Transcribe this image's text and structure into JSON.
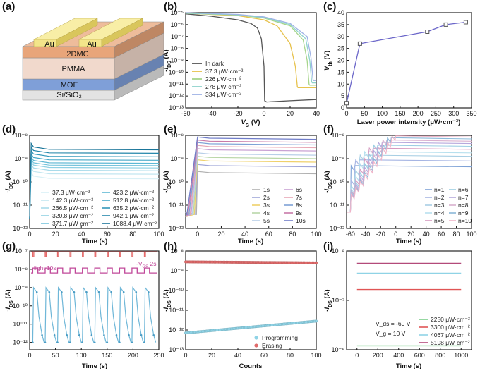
{
  "chart_data": [
    {
      "panel": "(a)",
      "type": "diagram",
      "layers": [
        "Au",
        "Au",
        "2DMC",
        "PMMA",
        "MOF",
        "Si/SiO₂"
      ],
      "colors": {
        "Au": "#f3e58a",
        "2DMC": "#e8a57a",
        "PMMA": "#f1d9cc",
        "MOF": "#7f9fd8",
        "Si": "#e3e3e3"
      }
    },
    {
      "panel": "(b)",
      "type": "line",
      "xlabel": "V_G (V)",
      "ylabel": "-I_DS (A)",
      "xlim": [
        -60,
        40
      ],
      "ylim_exp": [
        -13,
        -5
      ],
      "log_y": true,
      "xticks": [
        "-60",
        "-40",
        "-20",
        "0",
        "20",
        "40"
      ],
      "yticks": [
        "10-5",
        "10-6",
        "10-7",
        "10-8",
        "10-9",
        "10-10",
        "10-11",
        "10-12",
        "10-13"
      ],
      "series": [
        {
          "name": "In dark",
          "color": "#555555",
          "x": [
            -60,
            -40,
            -20,
            -10,
            -5,
            -2,
            0,
            0.5,
            2,
            20,
            40
          ],
          "y": [
            -5.1,
            -5.3,
            -5.6,
            -5.9,
            -6.3,
            -7.2,
            -9.5,
            -12.4,
            -12.5,
            -12.4,
            -12.3
          ]
        },
        {
          "name": "37.3 μW·cm⁻²",
          "color": "#e7c24d",
          "x": [
            -60,
            -20,
            0,
            10,
            20,
            24,
            25.5,
            26,
            40
          ],
          "y": [
            -5.05,
            -5.25,
            -5.6,
            -6.1,
            -7.6,
            -9.5,
            -11.2,
            -11.3,
            -11.3
          ]
        },
        {
          "name": "226 μW·cm⁻²",
          "color": "#a7d58c",
          "x": [
            -60,
            -20,
            0,
            20,
            30,
            33,
            34.5,
            35,
            40
          ],
          "y": [
            -5.05,
            -5.2,
            -5.45,
            -6.1,
            -7.3,
            -9.0,
            -11.0,
            -11.1,
            -11.1
          ]
        },
        {
          "name": "278 μW·cm⁻²",
          "color": "#8fd3cc",
          "x": [
            -60,
            -20,
            0,
            20,
            32,
            35,
            36.5,
            37,
            40
          ],
          "y": [
            -5.05,
            -5.18,
            -5.4,
            -6.0,
            -7.2,
            -9.0,
            -10.8,
            -10.9,
            -10.9
          ]
        },
        {
          "name": "334 μW·cm⁻²",
          "color": "#9fb3e6",
          "x": [
            -60,
            -20,
            0,
            20,
            33,
            36,
            37.5,
            38,
            40
          ],
          "y": [
            -5.0,
            -5.15,
            -5.35,
            -5.9,
            -7.0,
            -8.8,
            -10.6,
            -10.7,
            -10.7
          ]
        }
      ]
    },
    {
      "panel": "(c)",
      "type": "line",
      "xlabel": "Laser power intensity (μW·cm⁻²)",
      "ylabel": "V_th (V)",
      "xlim": [
        0,
        350
      ],
      "ylim": [
        0,
        40
      ],
      "xticks": [
        "0",
        "50",
        "100",
        "150",
        "200",
        "250",
        "300",
        "350"
      ],
      "yticks": [
        "0",
        "5",
        "10",
        "15",
        "20",
        "25",
        "30",
        "35",
        "40"
      ],
      "series": [
        {
          "name": "",
          "color": "#6b66c9",
          "x": [
            0,
            37.3,
            226,
            278,
            334
          ],
          "y": [
            2,
            27,
            32,
            35,
            36
          ]
        }
      ]
    },
    {
      "panel": "(d)",
      "type": "line",
      "xlabel": "Time (s)",
      "ylabel": "-I_DS (A)",
      "xlim": [
        0,
        100
      ],
      "ylim_exp": [
        -12,
        -8
      ],
      "log_y": true,
      "xticks": [
        "0",
        "20",
        "40",
        "60",
        "80",
        "100"
      ],
      "yticks": [
        "10-8",
        "10-9",
        "10-10",
        "10-11",
        "10-12"
      ],
      "legend": [
        "37.3  μW·cm⁻²",
        "142.3 μW·cm⁻²",
        "266.5 μW·cm⁻²",
        "320.8 μW·cm⁻²",
        "371.7 μW·cm⁻²",
        "423.2 μW·cm⁻²",
        "512.8 μW·cm⁻²",
        "635.2 μW·cm⁻²",
        "942.1 μW·cm⁻²",
        "1088.4 μW·cm⁻²"
      ],
      "plateaus_exp": [
        -9.85,
        -9.65,
        -9.5,
        -9.38,
        -9.28,
        -9.18,
        -9.05,
        -8.9,
        -8.75,
        -8.6
      ]
    },
    {
      "panel": "(e)",
      "type": "line",
      "xlabel": "Time (s)",
      "ylabel": "-I_DS (A)",
      "xlim": [
        -10,
        100
      ],
      "ylim_exp": [
        -12,
        -8
      ],
      "log_y": true,
      "xticks": [
        "0",
        "20",
        "40",
        "60",
        "80",
        "100"
      ],
      "yticks": [
        "10-8",
        "10-9",
        "10-10",
        "10-11",
        "10-12"
      ],
      "legend": [
        "1s",
        "2s",
        "3s",
        "4s",
        "5s",
        "6s",
        "7s",
        "8s",
        "9s",
        "10s"
      ],
      "plateaus_exp": [
        -9.6,
        -9.3,
        -9.1,
        -8.95,
        -8.8,
        -8.62,
        -8.48,
        -8.36,
        -8.25,
        -8.12
      ]
    },
    {
      "panel": "(f)",
      "type": "line",
      "xlabel": "Time (s)",
      "ylabel": "-I_DS (A)",
      "xlim": [
        -65,
        100
      ],
      "ylim_exp": [
        -12,
        -8
      ],
      "log_y": true,
      "xticks": [
        "-60",
        "-40",
        "-20",
        "0",
        "20",
        "40",
        "60",
        "80",
        "100"
      ],
      "yticks": [
        "10-8",
        "10-9",
        "10-10",
        "10-11",
        "10-12"
      ],
      "legend": [
        "n=1",
        "n=2",
        "n=3",
        "n=4",
        "n=5",
        "n=6",
        "n=7",
        "n=8",
        "n=9",
        "n=10"
      ],
      "plateaus_exp": [
        -9.3,
        -9.05,
        -8.85,
        -8.7,
        -8.55,
        -8.42,
        -8.3,
        -8.2,
        -8.1,
        -8.02
      ]
    },
    {
      "panel": "(g)",
      "type": "line",
      "xlabel": "Time (s)",
      "ylabel": "-I_DS (A)",
      "xlim": [
        0,
        250
      ],
      "ylim_exp": [
        -12.4,
        -7
      ],
      "log_y": true,
      "xticks": [
        "0",
        "50",
        "100",
        "150",
        "200",
        "250"
      ],
      "yticks": [
        "10-7",
        "10-8",
        "10-9",
        "10-10",
        "10-11",
        "10-12"
      ],
      "annotations": {
        "light": "light 10s",
        "vgs": "-V",
        "vgs_sub": "GS",
        "vgs_tail": " 2s"
      },
      "cycles": 10,
      "period_s": 24,
      "on_level_exp": -9.0,
      "off_level_exp": -12.0
    },
    {
      "panel": "(h)",
      "type": "scatter",
      "xlabel": "Counts",
      "ylabel": "-I_DS (A)",
      "xlim": [
        0,
        100
      ],
      "ylim_exp": [
        -13,
        -8
      ],
      "log_y": true,
      "xticks": [
        "0",
        "20",
        "40",
        "60",
        "80",
        "100"
      ],
      "yticks": [
        "10-8",
        "10-9",
        "10-10",
        "10-11",
        "10-12",
        "10-13"
      ],
      "series": [
        {
          "name": "Programming",
          "color": "#8fd3e6",
          "start_exp": -12.15,
          "end_exp": -11.55
        },
        {
          "name": "Erasing",
          "color": "#e06a6a",
          "start_exp": -8.55,
          "end_exp": -8.6
        }
      ]
    },
    {
      "panel": "(i)",
      "type": "line",
      "xlabel": "Time (s)",
      "ylabel": "-I_DS (A)",
      "xlim": [
        -100,
        1100
      ],
      "ylim_exp": [
        -8,
        -6
      ],
      "log_y": true,
      "xticks": [
        "0",
        "200",
        "400",
        "600",
        "800",
        "1000"
      ],
      "yticks": [
        "10-6",
        "10-7",
        "10-8"
      ],
      "annotations": [
        "V_ds = -60 V",
        "V_g = 10 V"
      ],
      "series": [
        {
          "name": "2250 μW·cm⁻²",
          "color": "#7ccf8a",
          "level_exp": -7.92
        },
        {
          "name": "3300 μW·cm⁻²",
          "color": "#e05555",
          "level_exp": -6.78
        },
        {
          "name": "4067 μW·cm⁻²",
          "color": "#8fd3e6",
          "level_exp": -6.45
        },
        {
          "name": "5198 μW·cm⁻²",
          "color": "#b34a7a",
          "level_exp": -6.25
        }
      ]
    }
  ]
}
